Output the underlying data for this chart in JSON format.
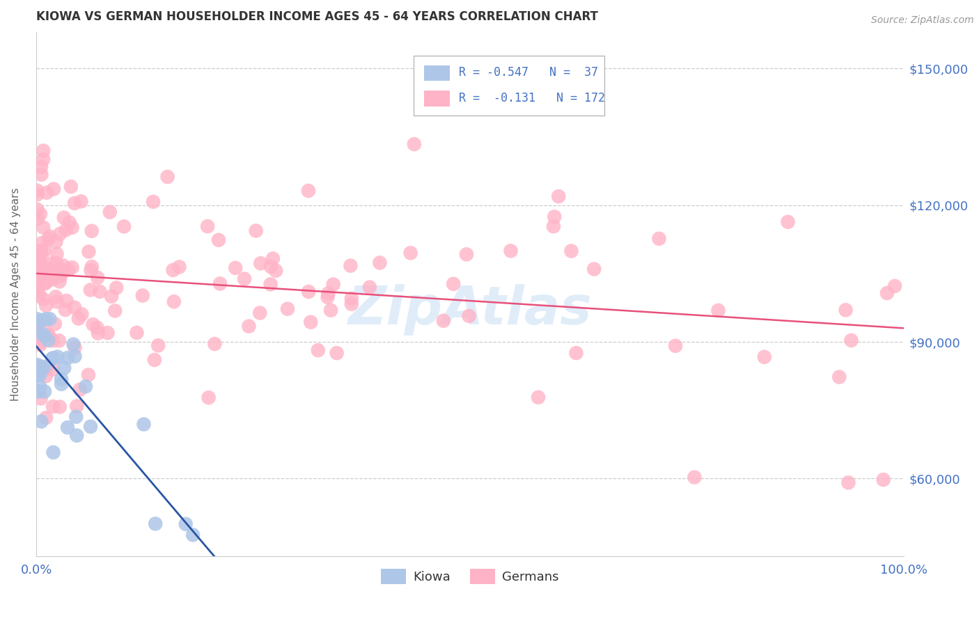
{
  "title": "KIOWA VS GERMAN HOUSEHOLDER INCOME AGES 45 - 64 YEARS CORRELATION CHART",
  "source": "Source: ZipAtlas.com",
  "ylabel": "Householder Income Ages 45 - 64 years",
  "xlim": [
    0,
    1.0
  ],
  "ylim": [
    43000,
    158000
  ],
  "yticks": [
    60000,
    90000,
    120000,
    150000
  ],
  "yticklabels": [
    "$60,000",
    "$90,000",
    "$120,000",
    "$150,000"
  ],
  "background_color": "#ffffff",
  "grid_color": "#cccccc",
  "title_color": "#333333",
  "axis_color": "#4472c4",
  "watermark": "ZipAtlas",
  "kiowa_color": "#aec6e8",
  "german_color": "#ffb3c6",
  "kiowa_line_color": "#2955a3",
  "german_line_color": "#e8507a",
  "legend_text_color": "#4472c4",
  "kiowa_R": -0.547,
  "kiowa_N": 37,
  "german_R": -0.131,
  "german_N": 172,
  "german_line_x0": 0.0,
  "german_line_y0": 105000,
  "german_line_x1": 1.0,
  "german_line_y1": 93000,
  "kiowa_line_x0": 0.0,
  "kiowa_line_y0": 89000,
  "kiowa_line_x1": 0.205,
  "kiowa_line_y1": 43000
}
